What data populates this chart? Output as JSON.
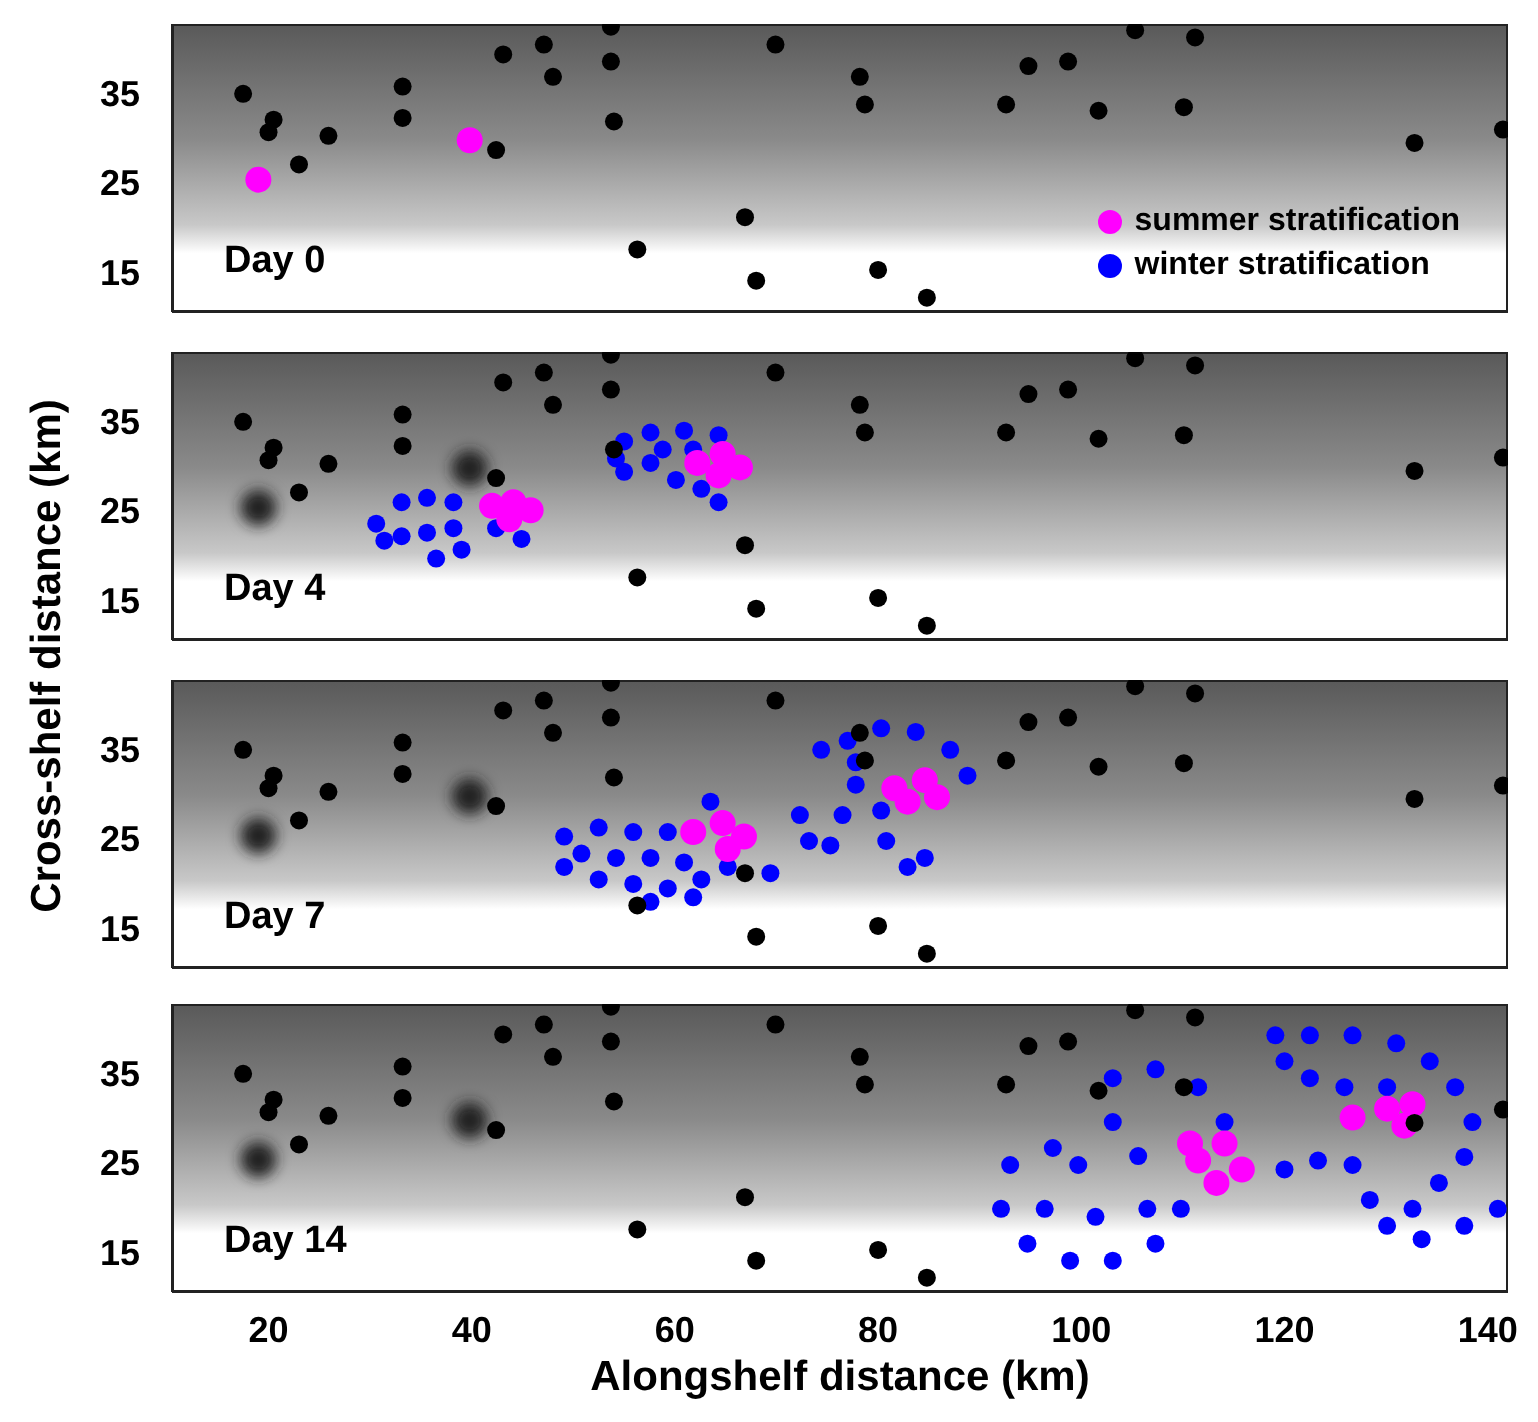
{
  "chart_data": [
    {
      "type": "scatter",
      "ylabel": "Cross-shelf distance (km)",
      "xlim": [
        10.5,
        142
      ],
      "ylim": [
        10.5,
        42.7
      ],
      "xticks": [
        20,
        40,
        60,
        80,
        100,
        120,
        140
      ],
      "yticks": [
        15,
        25,
        35
      ],
      "tick_labels": "y",
      "marker": "circle",
      "legend": "bottom right",
      "annotations": [
        "Day 0"
      ],
      "series": [
        {
          "name": "summer stratification",
          "color": "#ff00ff",
          "x": [
            19.0,
            39.8
          ],
          "values": [
            25.3,
            29.7
          ]
        },
        {
          "name": "winter stratification",
          "color": "#0000ff"
        },
        {
          "color": "#000000",
          "x": [
            17.5,
            20.5,
            20.0,
            25.9,
            23.0,
            33.2,
            33.2,
            43.1,
            47.1,
            48.0,
            53.7,
            53.7,
            54.0,
            42.4,
            69.9,
            78.2,
            78.7,
            94.8,
            98.7,
            92.6,
            101.7,
            105.3,
            111.2,
            110.1,
            132.8,
            141.5,
            66.9,
            56.3,
            68.0,
            80.0,
            84.8
          ],
          "values": [
            34.9,
            32.0,
            30.6,
            30.2,
            27.0,
            35.7,
            32.2,
            39.3,
            40.4,
            36.8,
            42.4,
            38.5,
            31.8,
            28.6,
            40.4,
            36.8,
            33.7,
            38.0,
            38.5,
            33.7,
            33.0,
            42.0,
            41.2,
            33.4,
            29.4,
            30.9,
            21.1,
            17.5,
            14.0,
            15.2,
            12.1
          ]
        }
      ]
    },
    {
      "type": "scatter",
      "xlim": [
        10.5,
        142
      ],
      "ylim": [
        10.5,
        42.7
      ],
      "xticks": [
        20,
        40,
        60,
        80,
        100,
        120,
        140
      ],
      "yticks": [
        15,
        25,
        35
      ],
      "tick_labels": "y",
      "marker": "circle",
      "annotations": [
        "Day 4"
      ],
      "series": [
        {
          "color": "#222222",
          "x": [
            19.0,
            39.8
          ],
          "values": [
            25.3,
            29.7
          ]
        },
        {
          "color": "#0000ff",
          "x": [
            30.6,
            33.1,
            35.6,
            38.2,
            33.1,
            35.6,
            38.2,
            36.5,
            39.0,
            31.4,
            42.4,
            44.9,
            55.0,
            57.6,
            60.9,
            64.3,
            55.0,
            57.6,
            60.1,
            54.2,
            62.6,
            64.3,
            58.8,
            61.8
          ],
          "values": [
            23.5,
            25.9,
            26.4,
            25.9,
            22.1,
            22.5,
            23.0,
            19.6,
            20.6,
            21.6,
            23.0,
            21.8,
            32.7,
            33.7,
            33.9,
            33.4,
            29.3,
            30.3,
            28.4,
            30.8,
            27.4,
            25.9,
            31.8,
            31.8
          ]
        },
        {
          "color": "#ff00ff",
          "x": [
            42.0,
            44.1,
            45.8,
            43.7,
            62.2,
            64.7,
            66.4,
            64.3
          ],
          "values": [
            25.5,
            25.9,
            25.0,
            24.0,
            30.3,
            31.3,
            29.8,
            28.9
          ]
        },
        {
          "color": "#000000",
          "x": [
            17.5,
            20.5,
            20.0,
            25.9,
            23.0,
            33.2,
            33.2,
            43.1,
            47.1,
            48.0,
            53.7,
            53.7,
            54.0,
            42.4,
            69.9,
            78.2,
            78.7,
            94.8,
            98.7,
            92.6,
            101.7,
            105.3,
            111.2,
            110.1,
            132.8,
            141.5,
            66.9,
            56.3,
            68.0,
            80.0,
            84.8
          ],
          "values": [
            34.9,
            32.0,
            30.6,
            30.2,
            27.0,
            35.7,
            32.2,
            39.3,
            40.4,
            36.8,
            42.4,
            38.5,
            31.8,
            28.6,
            40.4,
            36.8,
            33.7,
            38.0,
            38.5,
            33.7,
            33.0,
            42.0,
            41.2,
            33.4,
            29.4,
            30.9,
            21.1,
            17.5,
            14.0,
            15.2,
            12.1
          ]
        }
      ]
    },
    {
      "type": "scatter",
      "xlim": [
        10.5,
        142
      ],
      "ylim": [
        10.5,
        42.7
      ],
      "xticks": [
        20,
        40,
        60,
        80,
        100,
        120,
        140
      ],
      "yticks": [
        15,
        25,
        35
      ],
      "tick_labels": "y",
      "marker": "circle",
      "annotations": [
        "Day 7"
      ],
      "series": [
        {
          "color": "#222222",
          "x": [
            19.0,
            39.8
          ],
          "values": [
            25.3,
            29.7
          ]
        },
        {
          "color": "#0000ff",
          "x": [
            49.1,
            49.1,
            52.5,
            55.9,
            59.3,
            52.5,
            55.9,
            59.3,
            62.6,
            63.5,
            65.2,
            69.4,
            50.8,
            54.2,
            57.6,
            60.9,
            57.6,
            61.8,
            72.3,
            73.2,
            75.3,
            76.5,
            77.8,
            74.4,
            77.0,
            80.3,
            83.7,
            87.1,
            88.8,
            80.3,
            80.8,
            82.9,
            84.6,
            77.8
          ],
          "values": [
            25.2,
            21.8,
            26.2,
            25.7,
            25.7,
            20.4,
            19.9,
            19.4,
            20.4,
            29.1,
            21.8,
            21.1,
            23.3,
            22.8,
            22.8,
            22.3,
            17.9,
            18.4,
            27.6,
            24.7,
            24.2,
            27.6,
            31.0,
            34.9,
            35.9,
            37.3,
            36.9,
            34.9,
            32.0,
            28.1,
            24.7,
            21.8,
            22.8,
            33.5
          ]
        },
        {
          "color": "#ff00ff",
          "x": [
            61.8,
            64.7,
            66.8,
            65.2,
            81.6,
            84.6,
            85.8,
            82.9
          ],
          "values": [
            25.7,
            26.7,
            25.2,
            23.8,
            30.6,
            31.5,
            29.6,
            29.1
          ]
        },
        {
          "color": "#000000",
          "x": [
            17.5,
            20.5,
            20.0,
            25.9,
            23.0,
            33.2,
            33.2,
            43.1,
            47.1,
            48.0,
            53.7,
            53.7,
            54.0,
            42.4,
            69.9,
            78.2,
            78.7,
            94.8,
            98.7,
            92.6,
            101.7,
            105.3,
            111.2,
            110.1,
            132.8,
            141.5,
            66.9,
            56.3,
            68.0,
            80.0,
            84.8
          ],
          "values": [
            34.9,
            32.0,
            30.6,
            30.2,
            27.0,
            35.7,
            32.2,
            39.3,
            40.4,
            36.8,
            42.4,
            38.5,
            31.8,
            28.6,
            40.4,
            36.8,
            33.7,
            38.0,
            38.5,
            33.7,
            33.0,
            42.0,
            41.2,
            33.4,
            29.4,
            30.9,
            21.1,
            17.5,
            14.0,
            15.2,
            12.1
          ]
        }
      ]
    },
    {
      "type": "scatter",
      "xlabel": "Alongshelf distance (km)",
      "xlim": [
        10.5,
        142
      ],
      "ylim": [
        10.5,
        42.7
      ],
      "xticks": [
        20,
        40,
        60,
        80,
        100,
        120,
        140
      ],
      "yticks": [
        15,
        25,
        35
      ],
      "marker": "circle",
      "annotations": [
        "Day 14"
      ],
      "series": [
        {
          "color": "#222222",
          "x": [
            19.0,
            39.8
          ],
          "values": [
            25.3,
            29.7
          ]
        },
        {
          "color": "#0000ff",
          "x": [
            93.0,
            92.1,
            94.7,
            98.9,
            103.1,
            107.3,
            109.8,
            105.6,
            103.1,
            103.1,
            107.3,
            111.5,
            114.1,
            97.2,
            99.7,
            101.4,
            106.5,
            96.4,
            120.0,
            123.3,
            119.1,
            122.5,
            126.7,
            131.0,
            134.3,
            136.8,
            138.5,
            137.7,
            135.2,
            132.6,
            130.1,
            133.5,
            137.7,
            141.0,
            126.7,
            128.4,
            120.0,
            122.5,
            125.9,
            130.1
          ],
          "values": [
            24.7,
            19.8,
            15.9,
            14.0,
            14.0,
            15.9,
            19.8,
            25.7,
            29.5,
            34.4,
            35.4,
            33.4,
            29.5,
            26.6,
            24.7,
            18.9,
            19.8,
            19.8,
            24.2,
            25.2,
            39.2,
            39.2,
            39.2,
            38.3,
            36.3,
            33.4,
            29.5,
            25.6,
            22.7,
            19.8,
            17.9,
            16.4,
            17.9,
            19.8,
            24.7,
            20.8,
            36.3,
            34.4,
            33.4,
            33.4
          ]
        },
        {
          "color": "#ff00ff",
          "x": [
            110.7,
            114.1,
            115.8,
            113.3,
            111.5,
            126.7,
            130.1,
            132.6,
            131.8
          ],
          "values": [
            27.1,
            27.1,
            24.2,
            22.7,
            25.2,
            30.0,
            31.0,
            31.5,
            29.1
          ]
        },
        {
          "color": "#000000",
          "x": [
            17.5,
            20.5,
            20.0,
            25.9,
            23.0,
            33.2,
            33.2,
            43.1,
            47.1,
            48.0,
            53.7,
            53.7,
            54.0,
            42.4,
            69.9,
            78.2,
            78.7,
            94.8,
            98.7,
            92.6,
            101.7,
            105.3,
            111.2,
            110.1,
            132.8,
            141.5,
            66.9,
            56.3,
            68.0,
            80.0,
            84.8
          ],
          "values": [
            34.9,
            32.0,
            30.6,
            30.2,
            27.0,
            35.7,
            32.2,
            39.3,
            40.4,
            36.8,
            42.4,
            38.5,
            31.8,
            28.6,
            40.4,
            36.8,
            33.7,
            38.0,
            38.5,
            33.7,
            33.0,
            42.0,
            41.2,
            33.4,
            29.4,
            30.9,
            21.1,
            17.5,
            14.0,
            15.2,
            12.1
          ]
        }
      ]
    }
  ]
}
